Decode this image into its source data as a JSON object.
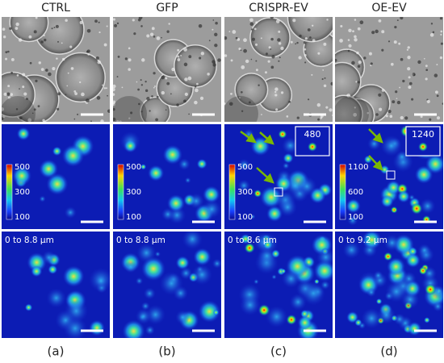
{
  "panels": [
    {
      "header": "CTRL",
      "colorbar_ticks": [
        500,
        300,
        100
      ],
      "depth": "0 to 8.8 µm",
      "caption": "(a)"
    },
    {
      "header": "GFP",
      "colorbar_ticks": [
        500,
        300,
        100
      ],
      "depth": "0 to 8.8 µm",
      "caption": "(b)"
    },
    {
      "header": "CRISPR-EV",
      "colorbar_ticks": [
        500,
        300,
        100
      ],
      "inset": 480,
      "depth": "0 to 8.6 µm",
      "caption": "(c)"
    },
    {
      "header": "OE-EV",
      "colorbar_ticks": [
        1100,
        600,
        100
      ],
      "inset": 1240,
      "depth": "0 to 9.2 µm",
      "caption": "(d)"
    }
  ]
}
